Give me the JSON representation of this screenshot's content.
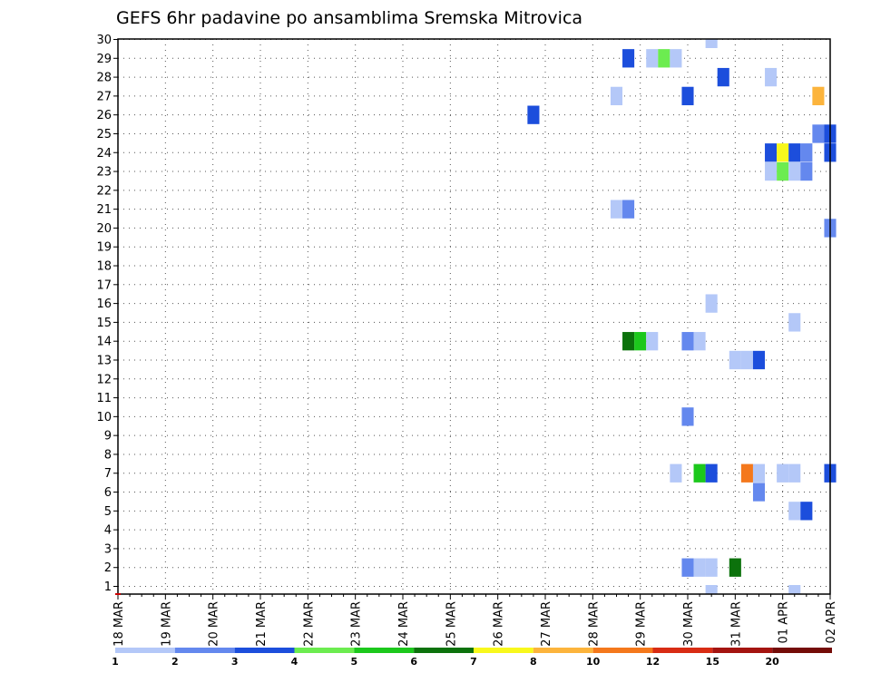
{
  "chart_data": {
    "type": "heatmap",
    "title": "GEFS 6hr padavine po ansamblima Sremska Mitrovica",
    "y_ticks": [
      1,
      2,
      3,
      4,
      5,
      6,
      7,
      8,
      9,
      10,
      11,
      12,
      13,
      14,
      15,
      16,
      17,
      18,
      19,
      20,
      21,
      22,
      23,
      24,
      25,
      26,
      27,
      28,
      29,
      30
    ],
    "ylim": [
      0,
      30
    ],
    "x_ticks": [
      "18 MAR",
      "19 MAR",
      "20 MAR",
      "21 MAR",
      "22 MAR",
      "23 MAR",
      "24 MAR",
      "25 MAR",
      "26 MAR",
      "27 MAR",
      "28 MAR",
      "29 MAR",
      "30 MAR",
      "31 MAR",
      "01 APR",
      "02 APR"
    ],
    "xlim": [
      0,
      60
    ],
    "grid": true,
    "legend": {
      "placement": "bottom",
      "colors": [
        "#b4c8f8",
        "#6488ee",
        "#1c4edc",
        "#6cec50",
        "#1cc81c",
        "#0c720c",
        "#f8f81c",
        "#fcb43c",
        "#f4781c",
        "#d82c14",
        "#a41410",
        "#740c08"
      ],
      "labels": [
        "1",
        "2",
        "3",
        "4",
        "5",
        "6",
        "7",
        "8",
        "10",
        "12",
        "15",
        "20"
      ]
    },
    "cells": [
      {
        "t": 50,
        "m": 30,
        "c": 0
      },
      {
        "t": 43,
        "m": 29,
        "c": 2
      },
      {
        "t": 45,
        "m": 29,
        "c": 0
      },
      {
        "t": 46,
        "m": 29,
        "c": 3
      },
      {
        "t": 47,
        "m": 29,
        "c": 0
      },
      {
        "t": 51,
        "m": 28,
        "c": 2
      },
      {
        "t": 55,
        "m": 28,
        "c": 0
      },
      {
        "t": 42,
        "m": 27,
        "c": 0
      },
      {
        "t": 48,
        "m": 27,
        "c": 2
      },
      {
        "t": 59,
        "m": 27,
        "c": 7
      },
      {
        "t": 35,
        "m": 26,
        "c": 2
      },
      {
        "t": 59,
        "m": 25,
        "c": 1
      },
      {
        "t": 60,
        "m": 25,
        "c": 2
      },
      {
        "t": 55,
        "m": 24,
        "c": 2
      },
      {
        "t": 56,
        "m": 24,
        "c": 6
      },
      {
        "t": 57,
        "m": 24,
        "c": 2
      },
      {
        "t": 58,
        "m": 24,
        "c": 1
      },
      {
        "t": 60,
        "m": 24,
        "c": 2
      },
      {
        "t": 55,
        "m": 23,
        "c": 0
      },
      {
        "t": 56,
        "m": 23,
        "c": 3
      },
      {
        "t": 57,
        "m": 23,
        "c": 0
      },
      {
        "t": 58,
        "m": 23,
        "c": 1
      },
      {
        "t": 42,
        "m": 21,
        "c": 0
      },
      {
        "t": 43,
        "m": 21,
        "c": 1
      },
      {
        "t": 60,
        "m": 20,
        "c": 1
      },
      {
        "t": 50,
        "m": 16,
        "c": 0
      },
      {
        "t": 57,
        "m": 15,
        "c": 0
      },
      {
        "t": 43,
        "m": 14,
        "c": 5
      },
      {
        "t": 44,
        "m": 14,
        "c": 4
      },
      {
        "t": 45,
        "m": 14,
        "c": 0
      },
      {
        "t": 48,
        "m": 14,
        "c": 1
      },
      {
        "t": 49,
        "m": 14,
        "c": 0
      },
      {
        "t": 52,
        "m": 13,
        "c": 0
      },
      {
        "t": 53,
        "m": 13,
        "c": 0
      },
      {
        "t": 54,
        "m": 13,
        "c": 2
      },
      {
        "t": 48,
        "m": 10,
        "c": 1
      },
      {
        "t": 47,
        "m": 7,
        "c": 0
      },
      {
        "t": 49,
        "m": 7,
        "c": 4
      },
      {
        "t": 50,
        "m": 7,
        "c": 2
      },
      {
        "t": 53,
        "m": 7,
        "c": 8
      },
      {
        "t": 54,
        "m": 7,
        "c": 0
      },
      {
        "t": 56,
        "m": 7,
        "c": 0
      },
      {
        "t": 57,
        "m": 7,
        "c": 0
      },
      {
        "t": 60,
        "m": 7,
        "c": 2
      },
      {
        "t": 54,
        "m": 6,
        "c": 1
      },
      {
        "t": 57,
        "m": 5,
        "c": 0
      },
      {
        "t": 58,
        "m": 5,
        "c": 2
      },
      {
        "t": 48,
        "m": 2,
        "c": 1
      },
      {
        "t": 49,
        "m": 2,
        "c": 0
      },
      {
        "t": 50,
        "m": 2,
        "c": 0
      },
      {
        "t": 52,
        "m": 2,
        "c": 5
      },
      {
        "t": 50,
        "m": 0,
        "c": 0
      },
      {
        "t": 57,
        "m": 0,
        "c": 0
      }
    ]
  }
}
